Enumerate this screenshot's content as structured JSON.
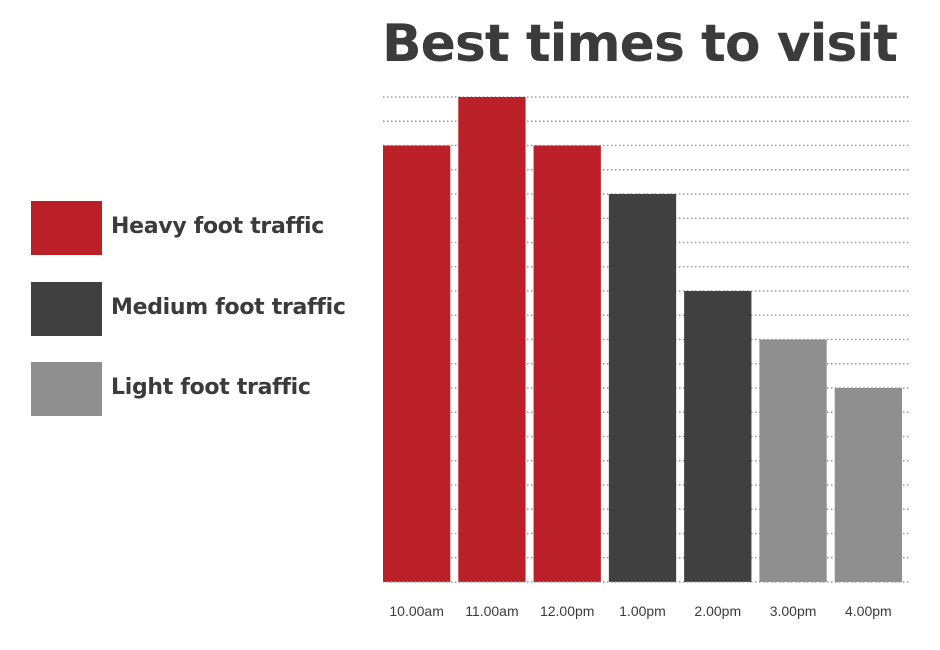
{
  "colors": {
    "heavy": "#bb1f28",
    "medium": "#404040",
    "light": "#8f8f8f",
    "grid": "#9a9a9a",
    "text": "#3b3b3b"
  },
  "legend": [
    {
      "label": "Heavy foot traffic",
      "color": "#bb1f28"
    },
    {
      "label": "Medium foot traffic",
      "color": "#404040"
    },
    {
      "label": "Light foot traffic",
      "color": "#8f8f8f"
    }
  ],
  "chart_data": {
    "type": "bar",
    "title": "Best times to visit",
    "xlabel": "",
    "ylabel": "",
    "categories": [
      "10.00am",
      "11.00am",
      "12.00pm",
      "1.00pm",
      "2.00pm",
      "3.00pm",
      "4.00pm"
    ],
    "values": [
      9,
      10,
      9,
      8,
      6,
      5,
      4
    ],
    "levels": [
      "heavy",
      "heavy",
      "heavy",
      "medium",
      "medium",
      "light",
      "light"
    ],
    "ylim": [
      0,
      10
    ],
    "grid": true,
    "legend_position": "left"
  }
}
